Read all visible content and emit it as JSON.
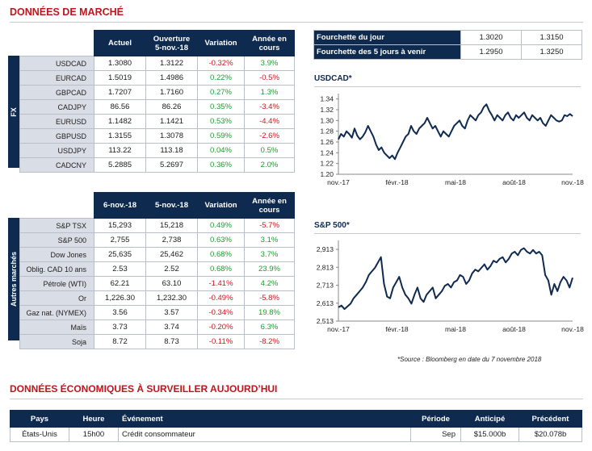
{
  "market_title": "DONNÉES DE MARCHÉ",
  "fx": {
    "side_label": "FX",
    "headers": [
      "Actuel",
      "Ouverture 5-nov.-18",
      "Variation",
      "Année en cours"
    ],
    "rows": [
      {
        "label": "USDCAD",
        "actuel": "1.3080",
        "ouverture": "1.3122",
        "variation": "-0.32%",
        "annee": "3.9%"
      },
      {
        "label": "EURCAD",
        "actuel": "1.5019",
        "ouverture": "1.4986",
        "variation": "0.22%",
        "annee": "-0.5%"
      },
      {
        "label": "GBPCAD",
        "actuel": "1.7207",
        "ouverture": "1.7160",
        "variation": "0.27%",
        "annee": "1.3%"
      },
      {
        "label": "CADJPY",
        "actuel": "86.56",
        "ouverture": "86.26",
        "variation": "0.35%",
        "annee": "-3.4%"
      },
      {
        "label": "EURUSD",
        "actuel": "1.1482",
        "ouverture": "1.1421",
        "variation": "0.53%",
        "annee": "-4.4%"
      },
      {
        "label": "GBPUSD",
        "actuel": "1.3155",
        "ouverture": "1.3078",
        "variation": "0.59%",
        "annee": "-2.6%"
      },
      {
        "label": "USDJPY",
        "actuel": "113.22",
        "ouverture": "113.18",
        "variation": "0.04%",
        "annee": "0.5%"
      },
      {
        "label": "CADCNY",
        "actuel": "5.2885",
        "ouverture": "5.2697",
        "variation": "0.36%",
        "annee": "2.0%"
      }
    ]
  },
  "markets": {
    "side_label": "Autres marchés",
    "headers": [
      "6-nov.-18",
      "5-nov.-18",
      "Variation",
      "Année en cours"
    ],
    "rows": [
      {
        "label": "S&P TSX",
        "a": "15,293",
        "b": "15,218",
        "variation": "0.49%",
        "annee": "-5.7%"
      },
      {
        "label": "S&P 500",
        "a": "2,755",
        "b": "2,738",
        "variation": "0.63%",
        "annee": "3.1%"
      },
      {
        "label": "Dow Jones",
        "a": "25,635",
        "b": "25,462",
        "variation": "0.68%",
        "annee": "3.7%"
      },
      {
        "label": "Oblig. CAD 10 ans",
        "a": "2.53",
        "b": "2.52",
        "variation": "0.68%",
        "annee": "23.9%"
      },
      {
        "label": "Pétrole (WTI)",
        "a": "62.21",
        "b": "63.10",
        "variation": "-1.41%",
        "annee": "4.2%"
      },
      {
        "label": "Or",
        "a": "1,226.30",
        "b": "1,232.30",
        "variation": "-0.49%",
        "annee": "-5.8%"
      },
      {
        "label": "Gaz nat. (NYMEX)",
        "a": "3.56",
        "b": "3.57",
        "variation": "-0.34%",
        "annee": "19.8%"
      },
      {
        "label": "Maïs",
        "a": "3.73",
        "b": "3.74",
        "variation": "-0.20%",
        "annee": "6.3%"
      },
      {
        "label": "Soja",
        "a": "8.72",
        "b": "8.73",
        "variation": "-0.11%",
        "annee": "-8.2%"
      }
    ]
  },
  "range": {
    "rows": [
      {
        "label": "Fourchette du jour",
        "low": "1.3020",
        "high": "1.3150"
      },
      {
        "label": "Fourchette des 5 jours à venir",
        "low": "1.2950",
        "high": "1.3250"
      }
    ]
  },
  "chart_usdcad_title": "USDCAD*",
  "chart_sp500_title": "S&P 500*",
  "chart_data": [
    {
      "type": "line",
      "title": "USDCAD*",
      "x_ticks": [
        "nov.-17",
        "févr.-18",
        "mai-18",
        "août-18",
        "nov.-18"
      ],
      "y_ticks": [
        "1.34",
        "1.32",
        "1.30",
        "1.28",
        "1.26",
        "1.24",
        "1.22",
        "1.20"
      ],
      "ylim": [
        1.2,
        1.35
      ],
      "color": "#0f2a4f",
      "values": [
        1.265,
        1.275,
        1.27,
        1.28,
        1.275,
        1.268,
        1.285,
        1.272,
        1.265,
        1.27,
        1.278,
        1.29,
        1.28,
        1.27,
        1.255,
        1.245,
        1.25,
        1.24,
        1.235,
        1.23,
        1.235,
        1.228,
        1.24,
        1.25,
        1.26,
        1.27,
        1.275,
        1.29,
        1.28,
        1.275,
        1.285,
        1.29,
        1.295,
        1.305,
        1.295,
        1.285,
        1.29,
        1.28,
        1.27,
        1.28,
        1.275,
        1.27,
        1.28,
        1.29,
        1.295,
        1.3,
        1.29,
        1.285,
        1.3,
        1.31,
        1.305,
        1.3,
        1.31,
        1.315,
        1.325,
        1.33,
        1.318,
        1.31,
        1.3,
        1.31,
        1.305,
        1.3,
        1.31,
        1.315,
        1.305,
        1.3,
        1.31,
        1.305,
        1.31,
        1.315,
        1.305,
        1.3,
        1.31,
        1.305,
        1.3,
        1.305,
        1.295,
        1.29,
        1.3,
        1.31,
        1.305,
        1.3,
        1.298,
        1.3,
        1.31,
        1.308,
        1.312,
        1.308
      ]
    },
    {
      "type": "line",
      "title": "S&P 500*",
      "x_ticks": [
        "nov.-17",
        "févr.-18",
        "mai-18",
        "août-18",
        "nov.-18"
      ],
      "y_ticks": [
        "2,913",
        "2,813",
        "2,713",
        "2,613",
        "2,513"
      ],
      "ylim": [
        2513,
        2963
      ],
      "color": "#0f2a4f",
      "values": [
        2590,
        2600,
        2580,
        2595,
        2610,
        2640,
        2660,
        2680,
        2700,
        2730,
        2770,
        2790,
        2810,
        2840,
        2870,
        2720,
        2650,
        2640,
        2700,
        2730,
        2760,
        2700,
        2660,
        2640,
        2610,
        2660,
        2700,
        2640,
        2620,
        2660,
        2680,
        2700,
        2640,
        2660,
        2680,
        2710,
        2720,
        2700,
        2730,
        2740,
        2770,
        2760,
        2720,
        2740,
        2780,
        2800,
        2790,
        2810,
        2830,
        2800,
        2820,
        2850,
        2840,
        2860,
        2870,
        2840,
        2860,
        2890,
        2900,
        2880,
        2910,
        2920,
        2900,
        2890,
        2910,
        2890,
        2900,
        2880,
        2770,
        2740,
        2660,
        2720,
        2680,
        2730,
        2760,
        2740,
        2700,
        2755
      ]
    }
  ],
  "source_note": "*Source : Bloomberg en date du  7 novembre 2018",
  "eco_title": "DONNÉES ÉCONOMIQUES À SURVEILLER AUJOURD’HUI",
  "eco": {
    "headers": {
      "pays": "Pays",
      "heure": "Heure",
      "evenement": "Événement",
      "periode": "Période",
      "anticipe": "Anticipé",
      "precedent": "Précédent"
    },
    "row": {
      "pays": "États-Unis",
      "heure": "15h00",
      "evenement": "Crédit consommateur",
      "periode": "Sep",
      "anticipe": "$15.000b",
      "precedent": "$20.078b"
    }
  }
}
